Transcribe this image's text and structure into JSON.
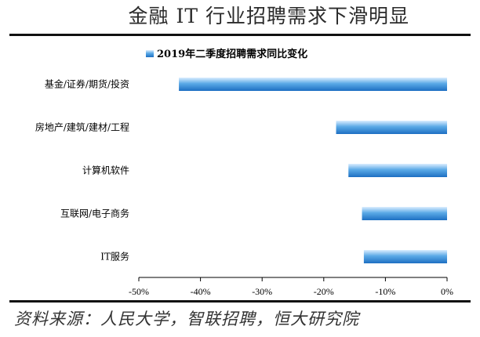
{
  "header": {
    "title": "金融 IT 行业招聘需求下滑明显"
  },
  "footer": {
    "source": "资料来源：人民大学，智联招聘，恒大研究院"
  },
  "colors": {
    "bar_light": "#dbeeff",
    "bar_mid": "#5aa9e6",
    "bar_dark": "#1d6fc2",
    "text": "#000000"
  },
  "chart_data": {
    "type": "bar",
    "orientation": "horizontal",
    "title": "",
    "xlabel": "",
    "ylabel": "",
    "legend": {
      "position": "top-left",
      "entries": [
        "2019年二季度招聘需求同比变化"
      ]
    },
    "categories": [
      "基金/证券/期货/投资",
      "房地产/建筑/建材/工程",
      "计算机软件",
      "互联网/电子商务",
      "IT服务"
    ],
    "series": [
      {
        "name": "2019年二季度招聘需求同比变化",
        "values": [
          -43.5,
          -18,
          -16,
          -13.8,
          -13.5
        ]
      }
    ],
    "xlim": [
      -50,
      0
    ],
    "xticks": [
      "-50%",
      "-40%",
      "-30%",
      "-20%",
      "-10%",
      "0%"
    ],
    "grid": false
  }
}
